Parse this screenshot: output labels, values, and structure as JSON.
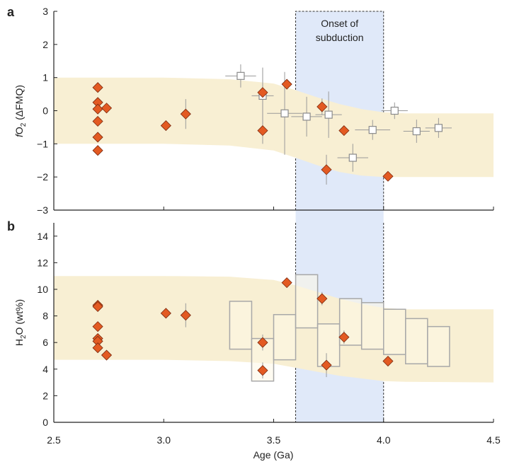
{
  "chart_data": [
    {
      "type": "scatter",
      "panel": "a",
      "ylabel": "fO2 (ΔFMQ)",
      "ylabel_parts": {
        "italic": "f",
        "base": "O",
        "sub": "2",
        "rest": " (ΔFMQ)"
      },
      "xlim": [
        2.5,
        4.5
      ],
      "ylim": [
        -3,
        3
      ],
      "y_ticks": [
        3,
        2,
        1,
        0,
        -1,
        -2,
        -3
      ],
      "y_tick_labels": [
        "3",
        "2",
        "1",
        "0",
        "−1",
        "−2",
        "−3"
      ],
      "band": {
        "x": [
          2.5,
          3.0,
          3.3,
          3.5,
          3.6,
          3.7,
          3.8,
          3.9,
          4.0,
          4.1,
          4.5
        ],
        "upper": [
          1.0,
          1.0,
          0.95,
          0.82,
          0.62,
          0.4,
          0.2,
          0.05,
          -0.05,
          -0.08,
          -0.08
        ],
        "lower": [
          -1.0,
          -1.0,
          -1.05,
          -1.2,
          -1.42,
          -1.65,
          -1.85,
          -1.96,
          -2.0,
          -2.0,
          -2.0
        ]
      },
      "series": [
        {
          "marker": "diamond",
          "points": [
            {
              "x": 2.7,
              "y": 0.7
            },
            {
              "x": 2.7,
              "y": 0.25
            },
            {
              "x": 2.7,
              "y": 0.05
            },
            {
              "x": 2.7,
              "y": -0.32
            },
            {
              "x": 2.7,
              "y": -0.8
            },
            {
              "x": 2.7,
              "y": -1.2
            },
            {
              "x": 2.74,
              "y": 0.08
            },
            {
              "x": 3.01,
              "y": -0.45,
              "yerr": 0.15
            },
            {
              "x": 3.1,
              "y": -0.1,
              "yerr": 0.45
            },
            {
              "x": 3.45,
              "y": 0.55,
              "yerr": 0.75
            },
            {
              "x": 3.45,
              "y": -0.6,
              "yerr": 0.4
            },
            {
              "x": 3.56,
              "y": 0.8
            },
            {
              "x": 3.72,
              "y": 0.12,
              "yerr": 0.25
            },
            {
              "x": 3.74,
              "y": -1.78,
              "yerr": 0.45
            },
            {
              "x": 3.82,
              "y": -0.6
            },
            {
              "x": 4.02,
              "y": -1.98
            }
          ]
        },
        {
          "marker": "open-square",
          "points": [
            {
              "x": 3.35,
              "y": 1.05,
              "xerr": 0.07,
              "yerr": 0.35
            },
            {
              "x": 3.45,
              "y": 0.45,
              "xerr": 0.05,
              "yerr": 0.85
            },
            {
              "x": 3.55,
              "y": -0.08,
              "xerr": 0.08,
              "yerr": 1.25
            },
            {
              "x": 3.65,
              "y": -0.18,
              "xerr": 0.07,
              "yerr": 0.6
            },
            {
              "x": 3.75,
              "y": -0.12,
              "xerr": 0.06,
              "yerr": 0.7
            },
            {
              "x": 3.86,
              "y": -1.42,
              "xerr": 0.07,
              "yerr": 0.42
            },
            {
              "x": 3.95,
              "y": -0.58,
              "xerr": 0.08,
              "yerr": 0.3
            },
            {
              "x": 4.05,
              "y": 0.0,
              "xerr": 0.06,
              "yerr": 0.25
            },
            {
              "x": 4.15,
              "y": -0.62,
              "xerr": 0.06,
              "yerr": 0.35
            },
            {
              "x": 4.25,
              "y": -0.52,
              "xerr": 0.06,
              "yerr": 0.3
            }
          ]
        }
      ]
    },
    {
      "type": "scatter",
      "panel": "b",
      "ylabel": "H2O (wt%)",
      "ylabel_parts": {
        "base": "H",
        "sub": "2",
        "rest": "O (wt%)"
      },
      "xlabel": "Age (Ga)",
      "xlim": [
        2.5,
        4.5
      ],
      "ylim": [
        0,
        15
      ],
      "x_ticks": [
        2.5,
        3.0,
        3.5,
        4.0,
        4.5
      ],
      "x_tick_labels": [
        "2.5",
        "3.0",
        "3.5",
        "4.0",
        "4.5"
      ],
      "y_ticks": [
        0,
        2,
        4,
        6,
        8,
        10,
        12,
        14
      ],
      "y_tick_labels": [
        "0",
        "2",
        "4",
        "6",
        "8",
        "10",
        "12",
        "14"
      ],
      "band": {
        "x": [
          2.5,
          3.0,
          3.3,
          3.5,
          3.6,
          3.7,
          3.8,
          3.9,
          4.0,
          4.1,
          4.5
        ],
        "upper": [
          11.0,
          11.0,
          10.95,
          10.7,
          10.3,
          9.8,
          9.3,
          8.9,
          8.6,
          8.5,
          8.5
        ],
        "lower": [
          4.7,
          4.7,
          4.6,
          4.4,
          4.1,
          3.8,
          3.5,
          3.3,
          3.1,
          3.05,
          3.0
        ]
      },
      "boxes": [
        {
          "x0": 3.3,
          "x1": 3.4,
          "low": 5.5,
          "high": 9.1
        },
        {
          "x0": 3.4,
          "x1": 3.5,
          "low": 3.1,
          "high": 6.3
        },
        {
          "x0": 3.5,
          "x1": 3.6,
          "low": 4.7,
          "high": 8.1
        },
        {
          "x0": 3.6,
          "x1": 3.7,
          "low": 7.1,
          "high": 11.1
        },
        {
          "x0": 3.7,
          "x1": 3.8,
          "low": 4.2,
          "high": 7.4
        },
        {
          "x0": 3.8,
          "x1": 3.9,
          "low": 5.8,
          "high": 9.3
        },
        {
          "x0": 3.9,
          "x1": 4.0,
          "low": 5.5,
          "high": 9.0
        },
        {
          "x0": 4.0,
          "x1": 4.1,
          "low": 5.1,
          "high": 8.5
        },
        {
          "x0": 4.1,
          "x1": 4.2,
          "low": 4.4,
          "high": 7.8
        },
        {
          "x0": 4.2,
          "x1": 4.3,
          "low": 4.2,
          "high": 7.2
        }
      ],
      "series": [
        {
          "marker": "diamond",
          "points": [
            {
              "x": 2.7,
              "y": 8.8,
              "yerr": 0.4
            },
            {
              "x": 2.7,
              "y": 8.7
            },
            {
              "x": 2.7,
              "y": 7.2
            },
            {
              "x": 2.7,
              "y": 6.3
            },
            {
              "x": 2.7,
              "y": 6.1
            },
            {
              "x": 2.7,
              "y": 5.6
            },
            {
              "x": 2.74,
              "y": 5.05
            },
            {
              "x": 3.01,
              "y": 8.2
            },
            {
              "x": 3.1,
              "y": 8.05,
              "yerr": 0.9
            },
            {
              "x": 3.45,
              "y": 6.0,
              "yerr": 0.6
            },
            {
              "x": 3.45,
              "y": 3.9,
              "yerr": 0.6
            },
            {
              "x": 3.56,
              "y": 10.5
            },
            {
              "x": 3.72,
              "y": 9.3,
              "yerr": 0.5
            },
            {
              "x": 3.74,
              "y": 4.3,
              "yerr": 0.9
            },
            {
              "x": 3.82,
              "y": 6.4,
              "yerr": 0.5
            },
            {
              "x": 4.02,
              "y": 4.6
            }
          ]
        }
      ]
    }
  ],
  "shading": {
    "x0": 3.6,
    "x1": 4.0,
    "label_lines": [
      "Onset of",
      "subduction"
    ]
  },
  "colors": {
    "band": "#f8efd3",
    "subduction": "#dbe5f8",
    "diamond_fill": "#e35a22",
    "diamond_stroke": "#7a2a10",
    "box_stroke": "#a8a8a8",
    "box_fill": "#fdf8e6",
    "error_bar": "#9a9a9a",
    "axis": "#222222"
  }
}
